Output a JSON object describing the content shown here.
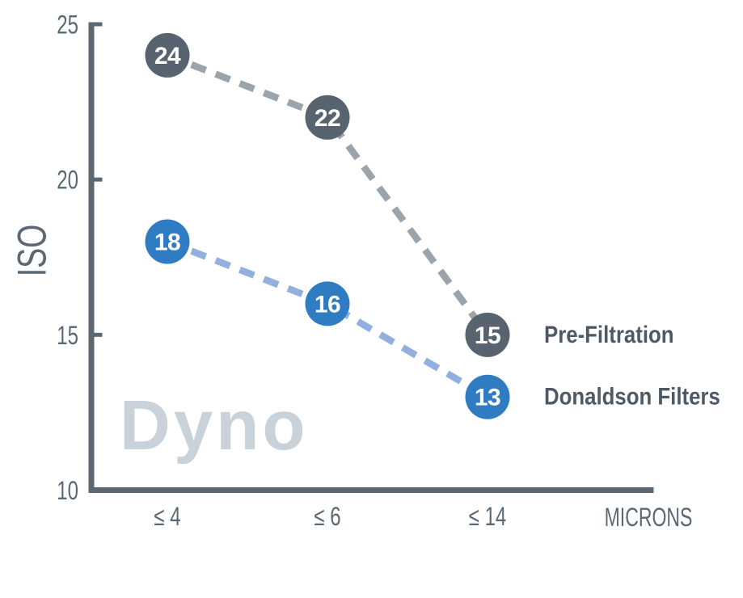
{
  "figure": {
    "watermark": "Dyno"
  },
  "colors": {
    "background": "#FFFFFF",
    "axis": "#5B6873",
    "tick_label": "#5B6873",
    "series_label_text": "#4D5A66",
    "watermark": "#C9D1D9",
    "marker_value_text": "#FFFFFF",
    "pre_filtration_marker": "#57636E",
    "pre_filtration_line": "#9BA3AB",
    "donaldson_marker": "#2F7CC2",
    "donaldson_line": "#93AFDF"
  },
  "chart_data": {
    "type": "line",
    "title": "",
    "x_categories": [
      "≤ 4",
      "≤ 6",
      "≤ 14"
    ],
    "xlabel": "MICRONS",
    "ylabel": "ISO",
    "ylim": [
      10,
      25
    ],
    "yticks": [
      25,
      20,
      15,
      10
    ],
    "grid": false,
    "line_style": "dashed",
    "legend_position": "right of last data point",
    "series": [
      {
        "name": "Pre-Filtration",
        "values": [
          24,
          22,
          15
        ],
        "marker_color": "#57636E",
        "line_color": "#9BA3AB"
      },
      {
        "name": "Donaldson Filters",
        "values": [
          18,
          16,
          13
        ],
        "marker_color": "#2F7CC2",
        "line_color": "#93AFDF"
      }
    ]
  }
}
